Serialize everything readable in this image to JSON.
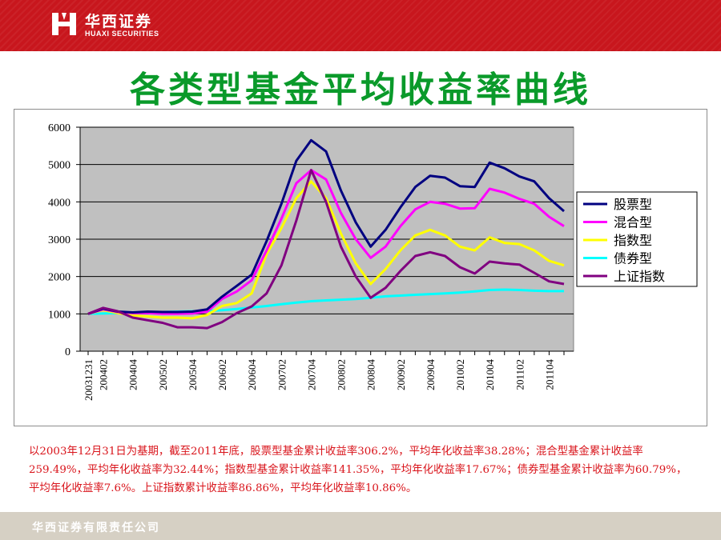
{
  "header": {
    "logo_cn": "华西证券",
    "logo_en": "HUAXI SECURITIES",
    "brand_color": "#c8161d"
  },
  "title": "各类型基金平均收益率曲线",
  "note": "以2003年12月31日为基期，截至2011年底，股票型基金累计收益率306.2%，平均年化收益率38.28%；混合型基金累计收益率259.49%，平均年化收益率为32.44%；指数型基金累计收益率141.35%，平均年化收益率17.67%；债券型基金累计收益率为60.79%，平均年化收益率7.6%。上证指数累计收益率86.86%，平均年化收益率10.86%。",
  "footer": {
    "company": "华西证券有限责任公司"
  },
  "chart_data": {
    "type": "line",
    "title": "",
    "xlabel": "",
    "ylabel": "",
    "ylim": [
      0,
      6000
    ],
    "yticks": [
      0,
      1000,
      2000,
      3000,
      4000,
      5000,
      6000
    ],
    "grid": true,
    "plot_background": "#c0c0c0",
    "legend_position": "right",
    "x": [
      "20031231",
      "200402",
      "200403",
      "200404",
      "200405",
      "200502",
      "200503",
      "200504",
      "200505",
      "200602",
      "200603",
      "200604",
      "200605",
      "200702",
      "200703",
      "200704",
      "200705",
      "200802",
      "200803",
      "200804",
      "200805",
      "200902",
      "200903",
      "200904",
      "200905",
      "201002",
      "201003",
      "201004",
      "201005",
      "201102",
      "201103",
      "201104",
      "201105"
    ],
    "xtick_labels": [
      "20031231",
      "200402",
      "200404",
      "200502",
      "200504",
      "200602",
      "200604",
      "200702",
      "200704",
      "200802",
      "200804",
      "200902",
      "200904",
      "201002",
      "201004",
      "201102",
      "201104"
    ],
    "series": [
      {
        "name": "股票型",
        "color": "#000080",
        "values": [
          1000,
          1140,
          1060,
          1040,
          1060,
          1050,
          1050,
          1060,
          1120,
          1460,
          1750,
          2050,
          2950,
          3950,
          5100,
          5650,
          5350,
          4300,
          3450,
          2800,
          3250,
          3850,
          4400,
          4700,
          4650,
          4420,
          4400,
          5050,
          4900,
          4680,
          4550,
          4100,
          3750
        ]
      },
      {
        "name": "混合型",
        "color": "#ff00ff",
        "values": [
          1000,
          1120,
          1050,
          1020,
          1020,
          1000,
          1000,
          1010,
          1060,
          1400,
          1600,
          1900,
          2700,
          3550,
          4500,
          4850,
          4600,
          3700,
          3000,
          2500,
          2800,
          3350,
          3800,
          4000,
          3950,
          3820,
          3830,
          4350,
          4250,
          4080,
          3950,
          3600,
          3350
        ]
      },
      {
        "name": "指数型",
        "color": "#ffff00",
        "values": [
          1000,
          1100,
          1020,
          960,
          930,
          900,
          900,
          880,
          970,
          1210,
          1290,
          1550,
          2600,
          3300,
          4100,
          4550,
          4100,
          3150,
          2350,
          1800,
          2200,
          2700,
          3100,
          3250,
          3100,
          2800,
          2700,
          3050,
          2900,
          2870,
          2700,
          2420,
          2300
        ]
      },
      {
        "name": "债券型",
        "color": "#00ffff",
        "values": [
          1000,
          1010,
          1020,
          1030,
          1040,
          1050,
          1060,
          1070,
          1080,
          1100,
          1130,
          1170,
          1210,
          1260,
          1300,
          1340,
          1360,
          1380,
          1400,
          1430,
          1470,
          1490,
          1510,
          1530,
          1550,
          1570,
          1600,
          1640,
          1650,
          1640,
          1620,
          1610,
          1610
        ]
      },
      {
        "name": "上证指数",
        "color": "#800080",
        "values": [
          1000,
          1160,
          1070,
          900,
          830,
          760,
          640,
          640,
          620,
          780,
          1020,
          1200,
          1550,
          2300,
          3500,
          4850,
          4000,
          2800,
          2000,
          1430,
          1700,
          2150,
          2550,
          2650,
          2550,
          2250,
          2080,
          2400,
          2350,
          2320,
          2100,
          1870,
          1800
        ]
      }
    ]
  }
}
